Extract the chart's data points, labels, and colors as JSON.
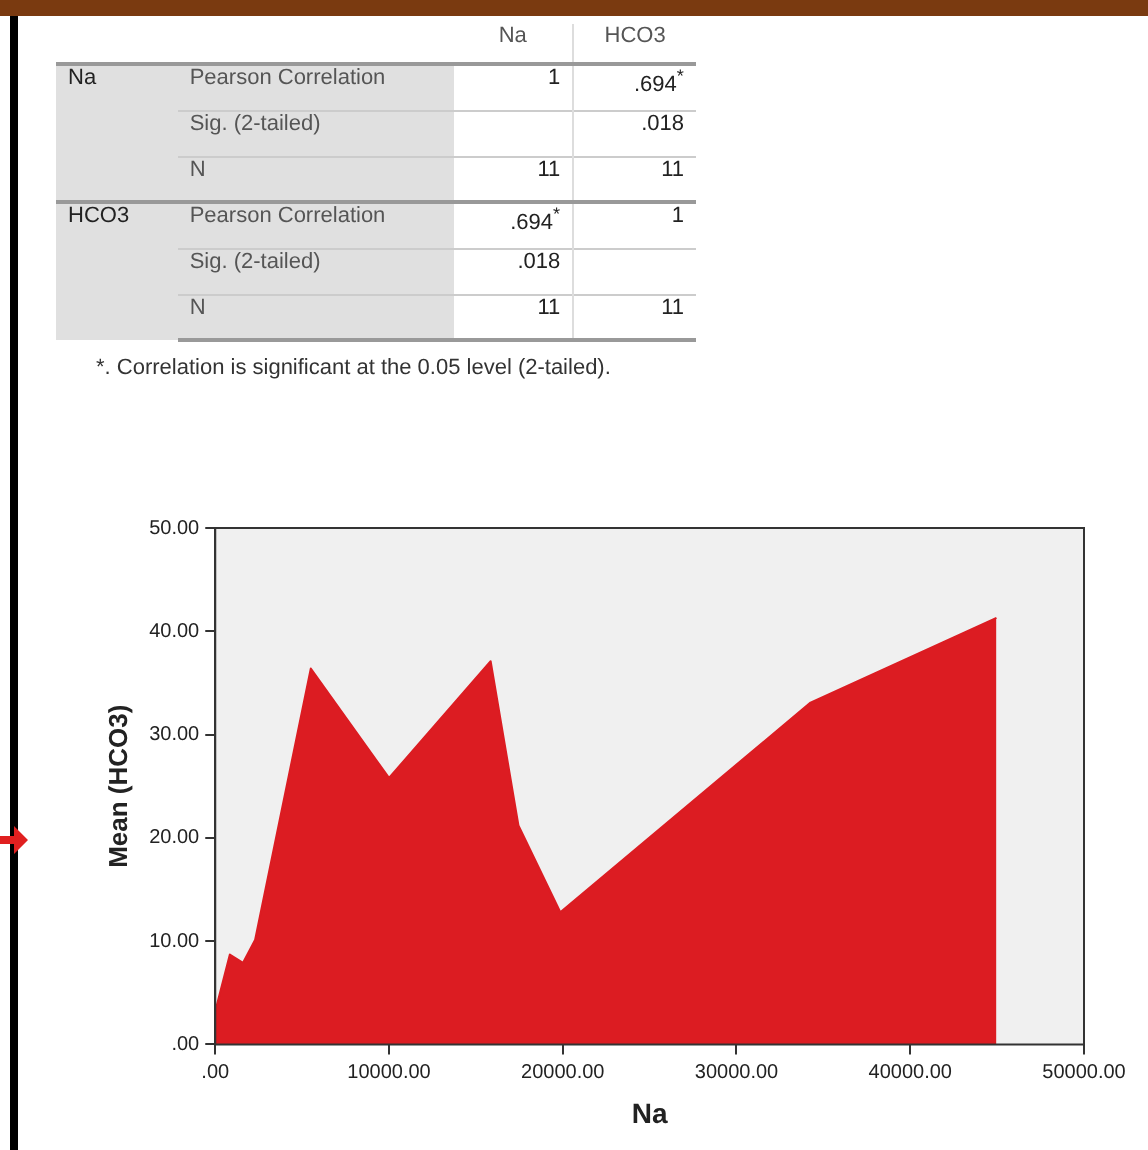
{
  "chart_data": [
    {
      "type": "other",
      "annotations": [
        "Na",
        "HCO3",
        "Na",
        "Pearson Correlation",
        "1",
        ".694$^{*}$",
        "Sig. (2-tailed)",
        ".018",
        "N",
        "11",
        "11",
        "HCO3",
        "Pearson Correlation",
        ".694$^{*}$",
        "1",
        "Sig. (2-tailed)",
        ".018",
        "N",
        "11",
        "11",
        "*. Correlation is significant at the 0.05 level (2-tailed)."
      ]
    },
    {
      "type": "area",
      "xlabel": "Na",
      "ylabel": "Mean (HCO3)",
      "x": [
        0,
        840,
        1600,
        2290,
        5500,
        10000,
        15850,
        17450,
        19860,
        34260,
        44960
      ],
      "values": [
        3.2,
        8.7,
        7.9,
        10.1,
        36.4,
        25.8,
        37.1,
        21.2,
        12.8,
        33.1,
        41.3
      ],
      "color": "#dc1c22",
      "xlim": [
        0,
        50000
      ],
      "xticks": [
        {
          "value": 0,
          "label": ".00"
        },
        {
          "value": 10000,
          "label": "10000.00"
        },
        {
          "value": 20000,
          "label": "20000.00"
        },
        {
          "value": 30000,
          "label": "30000.00"
        },
        {
          "value": 40000,
          "label": "40000.00"
        },
        {
          "value": 50000,
          "label": "50000.00"
        }
      ],
      "ylim": [
        0,
        50
      ],
      "yticks": [
        {
          "value": 0,
          "label": ".00"
        },
        {
          "value": 10,
          "label": "10.00"
        },
        {
          "value": 20,
          "label": "20.00"
        },
        {
          "value": 30,
          "label": "30.00"
        },
        {
          "value": 40,
          "label": "40.00"
        },
        {
          "value": 50,
          "label": "50.00"
        }
      ],
      "legend": false
    }
  ]
}
